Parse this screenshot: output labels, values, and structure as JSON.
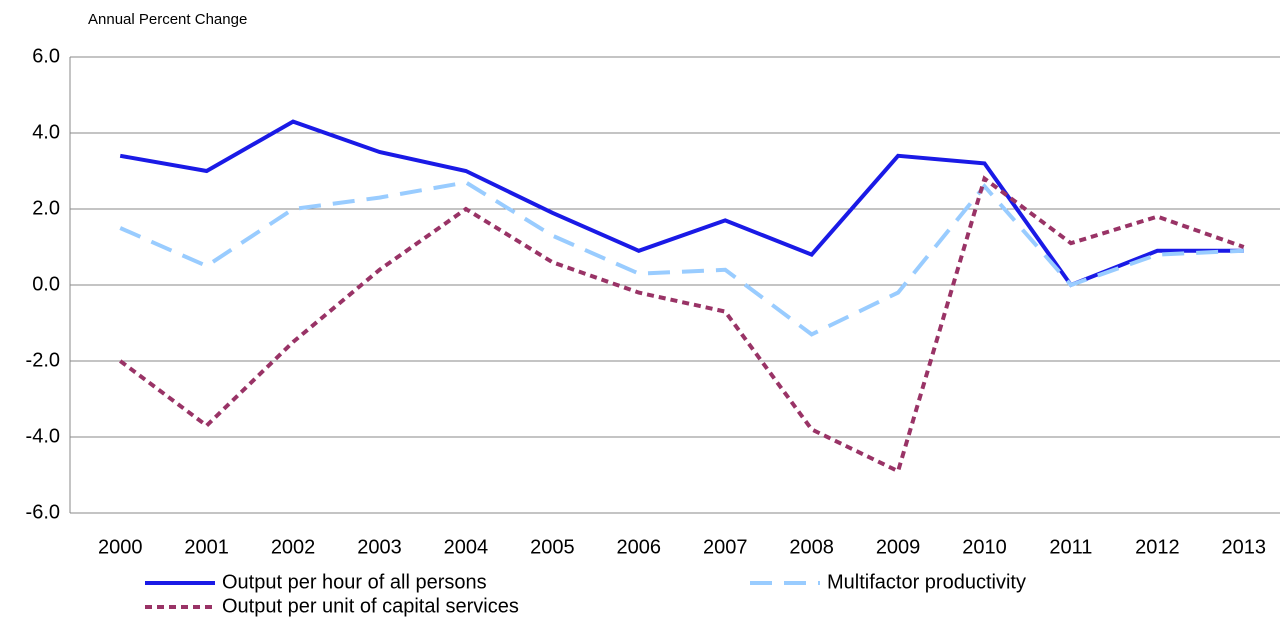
{
  "chart_data": {
    "type": "line",
    "y_axis_label": "Annual Percent Change",
    "categories": [
      "2000",
      "2001",
      "2002",
      "2003",
      "2004",
      "2005",
      "2006",
      "2007",
      "2008",
      "2009",
      "2010",
      "2011",
      "2012",
      "2013"
    ],
    "series": [
      {
        "name": "Output per hour of all persons",
        "color": "#1a1ae6",
        "dash": "solid",
        "values": [
          3.4,
          3.0,
          4.3,
          3.5,
          3.0,
          1.9,
          0.9,
          1.7,
          0.8,
          3.4,
          3.2,
          0.0,
          0.9,
          0.9
        ]
      },
      {
        "name": "Multifactor productivity",
        "color": "#99ccff",
        "dash": "long",
        "values": [
          1.5,
          0.5,
          2.0,
          2.3,
          2.7,
          1.3,
          0.3,
          0.4,
          -1.3,
          -0.2,
          2.6,
          0.0,
          0.8,
          0.9
        ]
      },
      {
        "name": "Output per unit of capital services",
        "color": "#993366",
        "dash": "short",
        "values": [
          -2.0,
          -3.7,
          -1.5,
          0.4,
          2.0,
          0.6,
          -0.2,
          -0.7,
          -3.8,
          -4.9,
          2.8,
          1.1,
          1.8,
          1.0
        ]
      }
    ],
    "ylim": [
      -6,
      6
    ],
    "yticks": [
      {
        "value": -6,
        "label": "-6.0"
      },
      {
        "value": -4,
        "label": "-4.0"
      },
      {
        "value": -2,
        "label": "-2.0"
      },
      {
        "value": 0,
        "label": "0.0"
      },
      {
        "value": 2,
        "label": "2.0"
      },
      {
        "value": 4,
        "label": "4.0"
      },
      {
        "value": 6,
        "label": "6.0"
      }
    ],
    "grid": true
  }
}
